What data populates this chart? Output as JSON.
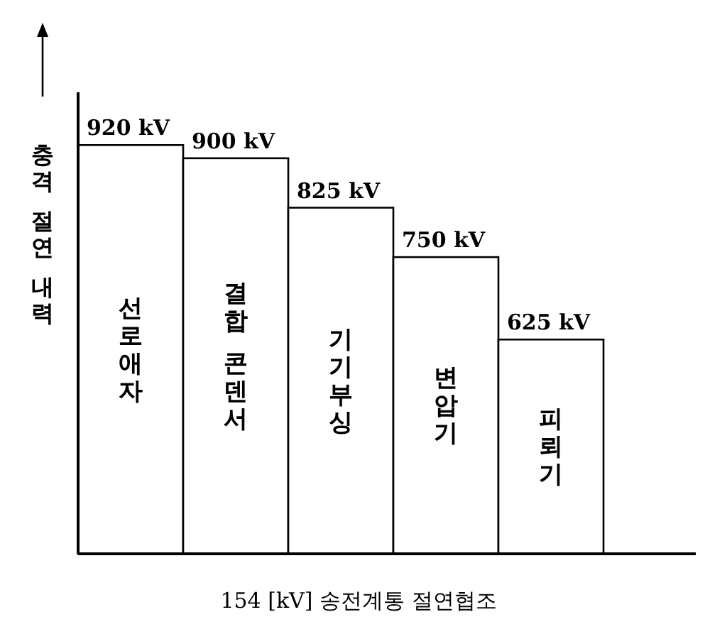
{
  "chart_data": {
    "type": "bar",
    "ylabel": "충격 절연 내력",
    "xlabel": "154 [kV] 송전계통 절연협조",
    "categories": [
      "선로애자",
      "결합 콘덴서",
      "기기부싱",
      "변압기",
      "피뢰기"
    ],
    "values": [
      920,
      900,
      825,
      750,
      625
    ],
    "value_labels": [
      "920 kV",
      "900 kV",
      "825 kV",
      "750 kV",
      "625 kV"
    ],
    "color": "#ffffff",
    "ylim": [
      300,
      1000
    ]
  }
}
